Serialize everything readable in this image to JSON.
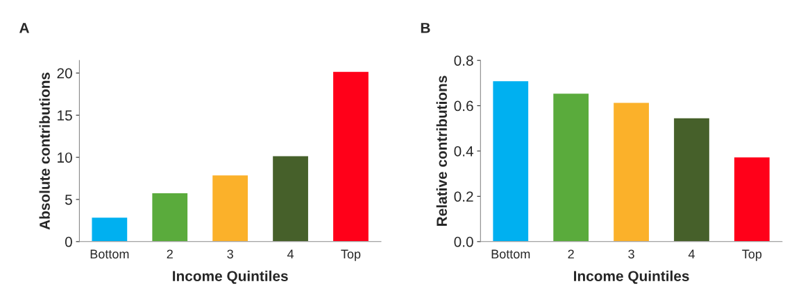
{
  "chart_data": [
    {
      "type": "bar",
      "title": "A",
      "xlabel": "Income Quintiles",
      "ylabel": "Absolute contributions",
      "categories": [
        "Bottom",
        "2",
        "3",
        "4",
        "Top"
      ],
      "values": [
        2.9,
        5.8,
        7.9,
        10.2,
        20.2
      ],
      "colors": [
        "#00b0f0",
        "#5aab3c",
        "#fbb12a",
        "#46602a",
        "#ff0019"
      ],
      "ylim": [
        0,
        21.5
      ],
      "yticks": [
        0,
        5,
        10,
        15,
        20
      ],
      "grid": false,
      "legend": false
    },
    {
      "type": "bar",
      "title": "B",
      "xlabel": "Income Quintiles",
      "ylabel": "Relative contributions",
      "categories": [
        "Bottom",
        "2",
        "3",
        "4",
        "Top"
      ],
      "values": [
        0.71,
        0.655,
        0.615,
        0.547,
        0.374
      ],
      "colors": [
        "#00b0f0",
        "#5aab3c",
        "#fbb12a",
        "#46602a",
        "#ff0019"
      ],
      "ylim": [
        0,
        0.8
      ],
      "yticks": [
        {
          "value": 0,
          "label": "0.0"
        },
        0.2,
        0.4,
        0.6,
        0.8
      ],
      "grid": false,
      "legend": false
    }
  ]
}
